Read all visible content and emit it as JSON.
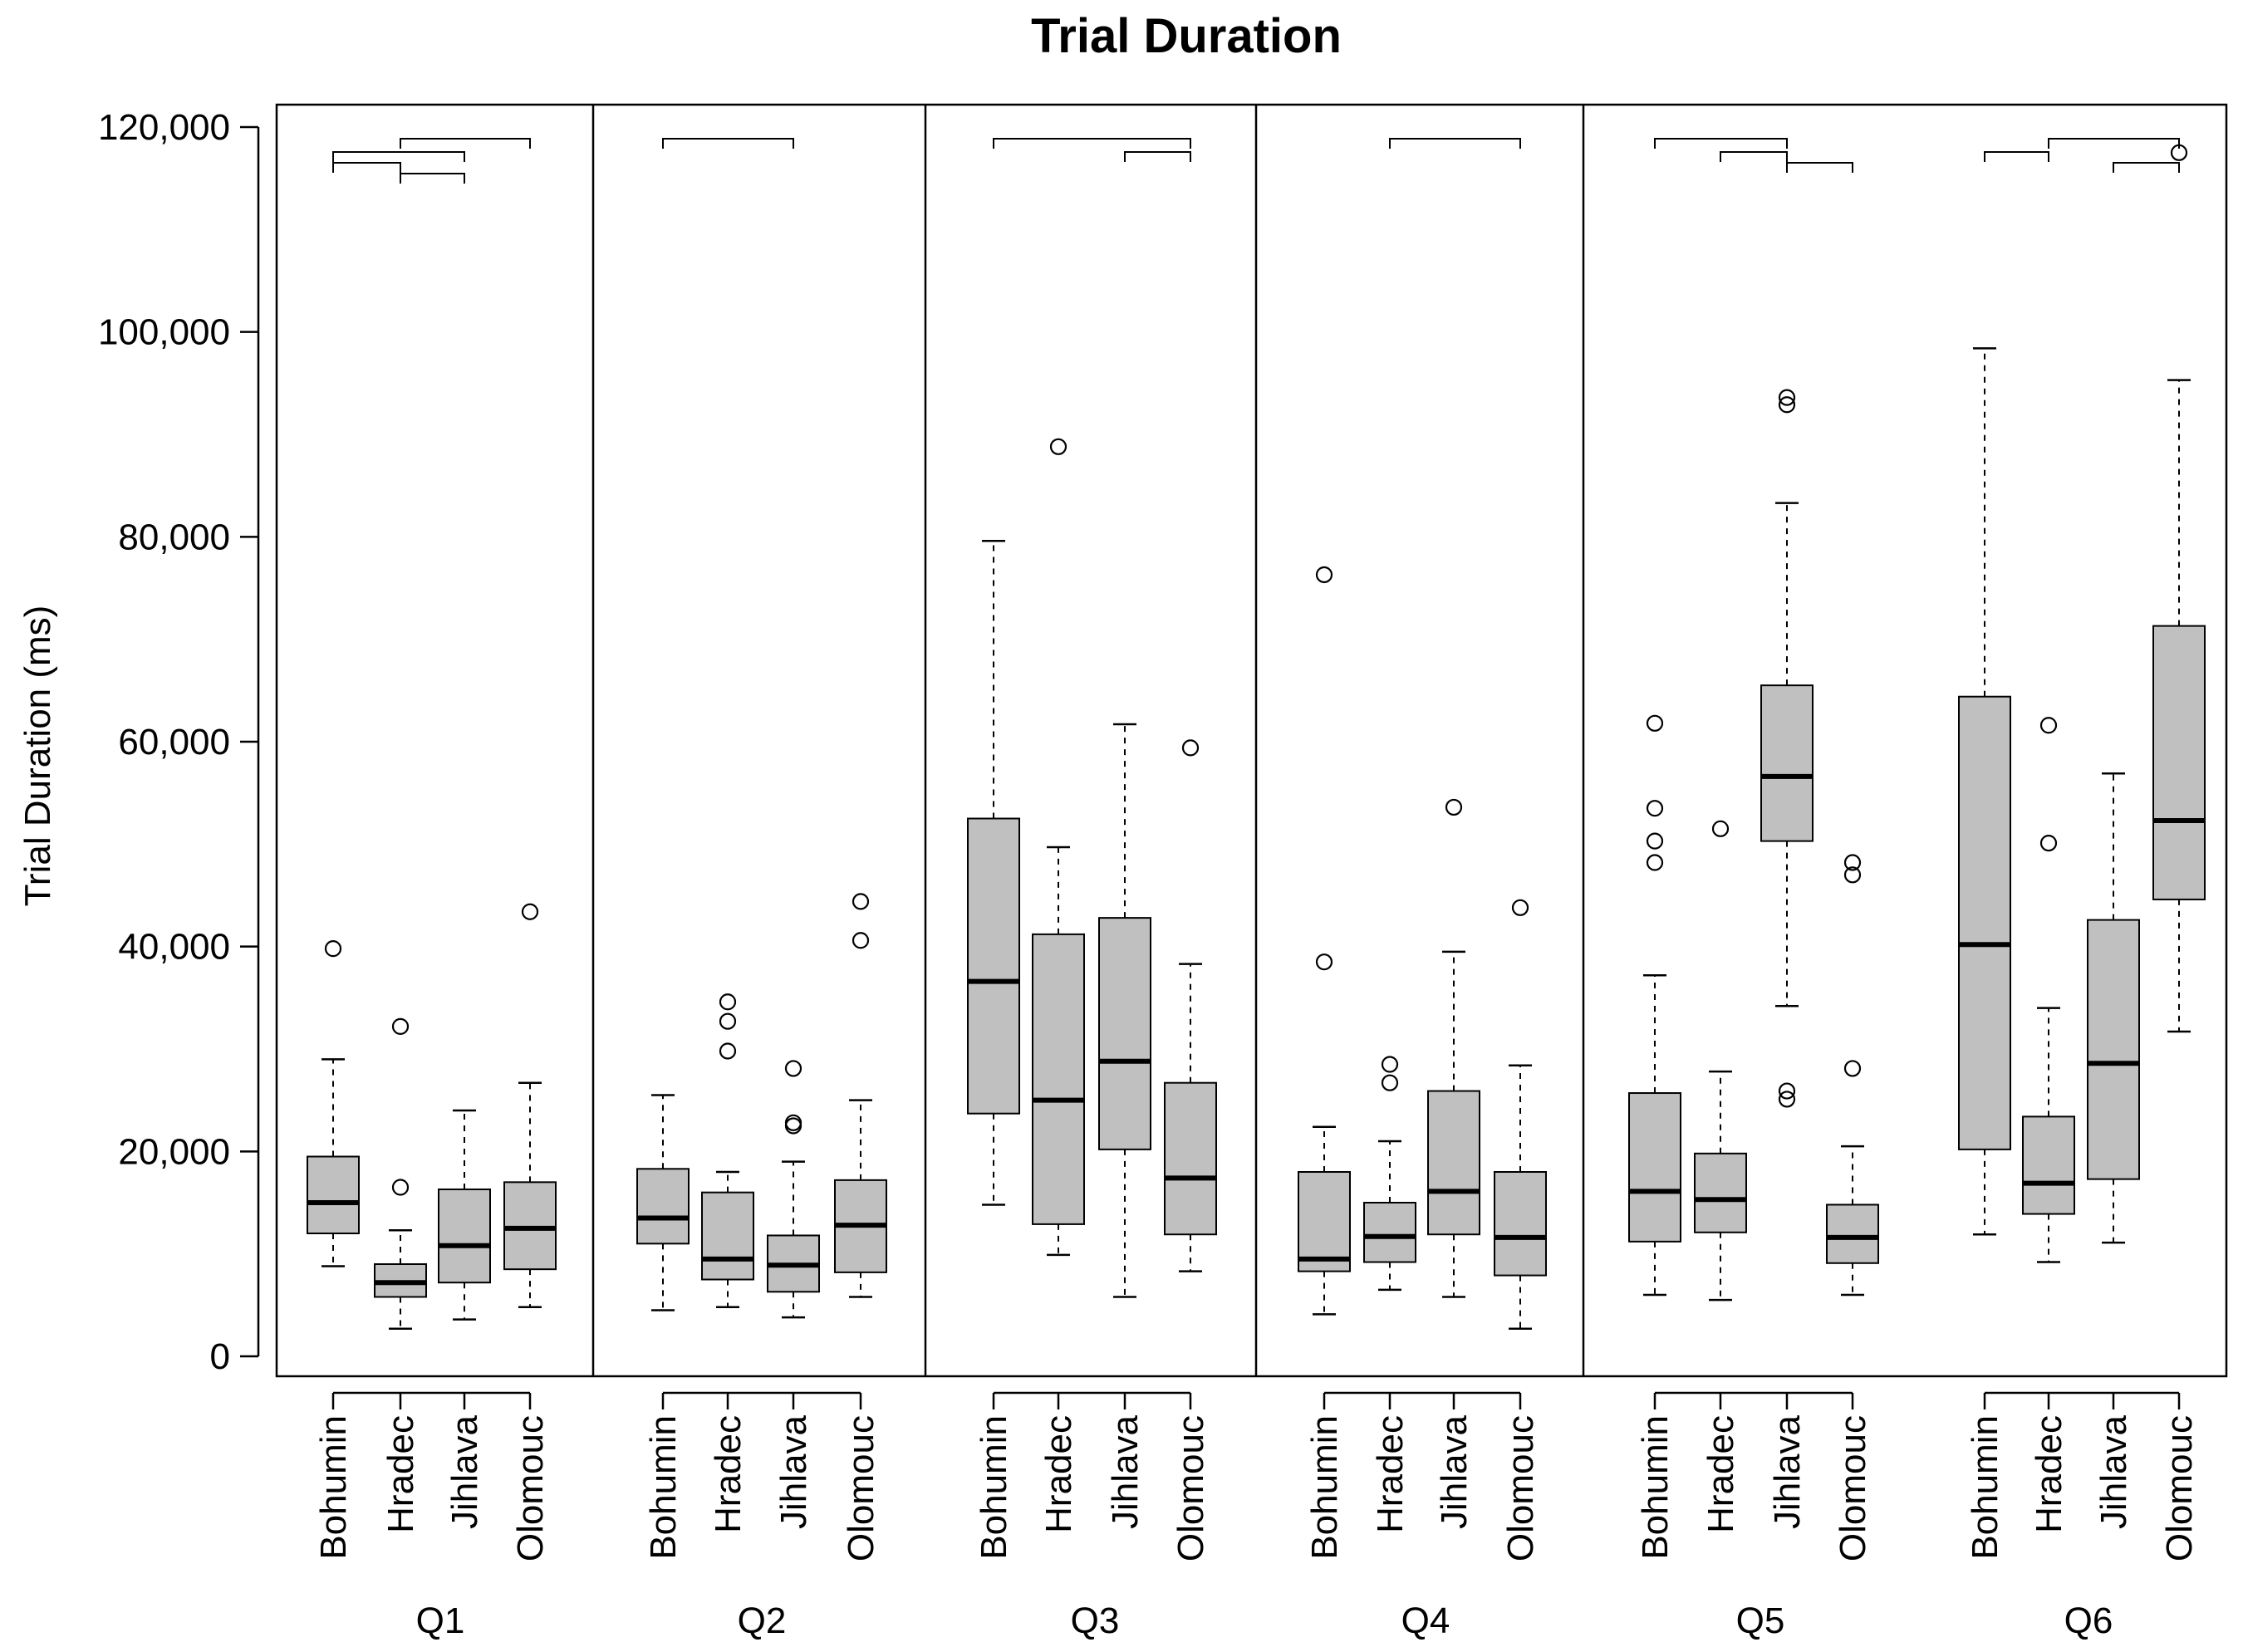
{
  "chart_data": {
    "type": "boxplot",
    "title": "Trial Duration",
    "ylabel": "Trial Duration (ms)",
    "xlabel": "",
    "ylim": [
      0,
      120000
    ],
    "yticks": [
      0,
      20000,
      40000,
      60000,
      80000,
      100000,
      120000
    ],
    "ytick_labels": [
      "0",
      "20,000",
      "40,000",
      "60,000",
      "80,000",
      "100,000",
      "120,000"
    ],
    "groups": [
      "Bohumin",
      "Hradec",
      "Jihlava",
      "Olomouc"
    ],
    "panels": [
      {
        "label": "Q1",
        "boxes": [
          {
            "group": "Bohumin",
            "min": 8800,
            "q1": 12000,
            "median": 15000,
            "q3": 19500,
            "max": 29000,
            "outliers": [
              39800
            ]
          },
          {
            "group": "Hradec",
            "min": 2700,
            "q1": 5800,
            "median": 7200,
            "q3": 9000,
            "max": 12300,
            "outliers": [
              16500,
              32200
            ]
          },
          {
            "group": "Jihlava",
            "min": 3600,
            "q1": 7200,
            "median": 10800,
            "q3": 16300,
            "max": 24000,
            "outliers": []
          },
          {
            "group": "Olomouc",
            "min": 4800,
            "q1": 8500,
            "median": 12500,
            "q3": 17000,
            "max": 26700,
            "outliers": [
              43400
            ]
          }
        ],
        "brackets": [
          {
            "from": "Bohumin",
            "to": "Jihlava",
            "level": 2
          },
          {
            "from": "Bohumin",
            "to": "Hradec",
            "level": 1
          },
          {
            "from": "Hradec",
            "to": "Olomouc",
            "level": 3
          },
          {
            "from": "Hradec",
            "to": "Jihlava",
            "level": 0
          }
        ]
      },
      {
        "label": "Q2",
        "boxes": [
          {
            "group": "Bohumin",
            "min": 4500,
            "q1": 11000,
            "median": 13500,
            "q3": 18300,
            "max": 25500,
            "outliers": []
          },
          {
            "group": "Hradec",
            "min": 4800,
            "q1": 7500,
            "median": 9500,
            "q3": 16000,
            "max": 18000,
            "outliers": [
              29800,
              32700,
              34600
            ]
          },
          {
            "group": "Jihlava",
            "min": 3800,
            "q1": 6300,
            "median": 8900,
            "q3": 11800,
            "max": 19000,
            "outliers": [
              22500,
              22800,
              28100
            ]
          },
          {
            "group": "Olomouc",
            "min": 5800,
            "q1": 8200,
            "median": 12800,
            "q3": 17200,
            "max": 25000,
            "outliers": [
              40600,
              44400
            ]
          }
        ],
        "brackets": [
          {
            "from": "Bohumin",
            "to": "Jihlava",
            "level": 3
          }
        ]
      },
      {
        "label": "Q3",
        "boxes": [
          {
            "group": "Bohumin",
            "min": 14800,
            "q1": 23700,
            "median": 36600,
            "q3": 52500,
            "max": 79600,
            "outliers": []
          },
          {
            "group": "Hradec",
            "min": 9900,
            "q1": 12900,
            "median": 25000,
            "q3": 41200,
            "max": 49700,
            "outliers": [
              88800
            ]
          },
          {
            "group": "Jihlava",
            "min": 5800,
            "q1": 20200,
            "median": 28800,
            "q3": 42800,
            "max": 61700,
            "outliers": []
          },
          {
            "group": "Olomouc",
            "min": 8300,
            "q1": 11900,
            "median": 17400,
            "q3": 26700,
            "max": 38300,
            "outliers": [
              59400
            ]
          }
        ],
        "brackets": [
          {
            "from": "Bohumin",
            "to": "Olomouc",
            "level": 3
          },
          {
            "from": "Jihlava",
            "to": "Olomouc",
            "level": 2
          }
        ]
      },
      {
        "label": "Q4",
        "boxes": [
          {
            "group": "Bohumin",
            "min": 4100,
            "q1": 8300,
            "median": 9500,
            "q3": 18000,
            "max": 22400,
            "outliers": [
              38500,
              76300
            ]
          },
          {
            "group": "Hradec",
            "min": 6500,
            "q1": 9200,
            "median": 11700,
            "q3": 15000,
            "max": 21000,
            "outliers": [
              26700,
              28500
            ]
          },
          {
            "group": "Jihlava",
            "min": 5800,
            "q1": 11900,
            "median": 16100,
            "q3": 25900,
            "max": 39500,
            "outliers": [
              53600
            ]
          },
          {
            "group": "Olomouc",
            "min": 2700,
            "q1": 7900,
            "median": 11600,
            "q3": 18000,
            "max": 28400,
            "outliers": [
              43800
            ]
          }
        ],
        "brackets": [
          {
            "from": "Hradec",
            "to": "Olomouc",
            "level": 3
          }
        ]
      },
      {
        "label": "Q5",
        "boxes": [
          {
            "group": "Bohumin",
            "min": 6000,
            "q1": 11200,
            "median": 16100,
            "q3": 25700,
            "max": 37200,
            "outliers": [
              48200,
              50300,
              53500,
              61800
            ]
          },
          {
            "group": "Hradec",
            "min": 5500,
            "q1": 12100,
            "median": 15300,
            "q3": 19800,
            "max": 27800,
            "outliers": [
              51500
            ]
          },
          {
            "group": "Jihlava",
            "min": 34200,
            "q1": 50300,
            "median": 56600,
            "q3": 65500,
            "max": 83300,
            "outliers": [
              25100,
              25900,
              92900,
              93600
            ]
          },
          {
            "group": "Olomouc",
            "min": 6000,
            "q1": 9100,
            "median": 11600,
            "q3": 14800,
            "max": 20500,
            "outliers": [
              28100,
              47000,
              48200
            ]
          }
        ],
        "brackets": [
          {
            "from": "Bohumin",
            "to": "Jihlava",
            "level": 3
          },
          {
            "from": "Hradec",
            "to": "Jihlava",
            "level": 2
          },
          {
            "from": "Jihlava",
            "to": "Olomouc",
            "level": 1
          }
        ]
      },
      {
        "label": "Q6",
        "boxes": [
          {
            "group": "Bohumin",
            "min": 11900,
            "q1": 20200,
            "median": 40200,
            "q3": 64400,
            "max": 98400,
            "outliers": []
          },
          {
            "group": "Hradec",
            "min": 9200,
            "q1": 13900,
            "median": 16900,
            "q3": 23400,
            "max": 34000,
            "outliers": [
              50100,
              61600
            ]
          },
          {
            "group": "Jihlava",
            "min": 11100,
            "q1": 17300,
            "median": 28600,
            "q3": 42600,
            "max": 56900,
            "outliers": []
          },
          {
            "group": "Olomouc",
            "min": 31700,
            "q1": 44600,
            "median": 52300,
            "q3": 71300,
            "max": 95300,
            "outliers": [
              117500
            ]
          }
        ],
        "brackets": [
          {
            "from": "Bohumin",
            "to": "Hradec",
            "level": 2
          },
          {
            "from": "Hradec",
            "to": "Olomouc",
            "level": 3
          },
          {
            "from": "Jihlava",
            "to": "Olomouc",
            "level": 1
          }
        ]
      }
    ],
    "box_fill": "#c0c0c0",
    "line_color": "#000000"
  }
}
